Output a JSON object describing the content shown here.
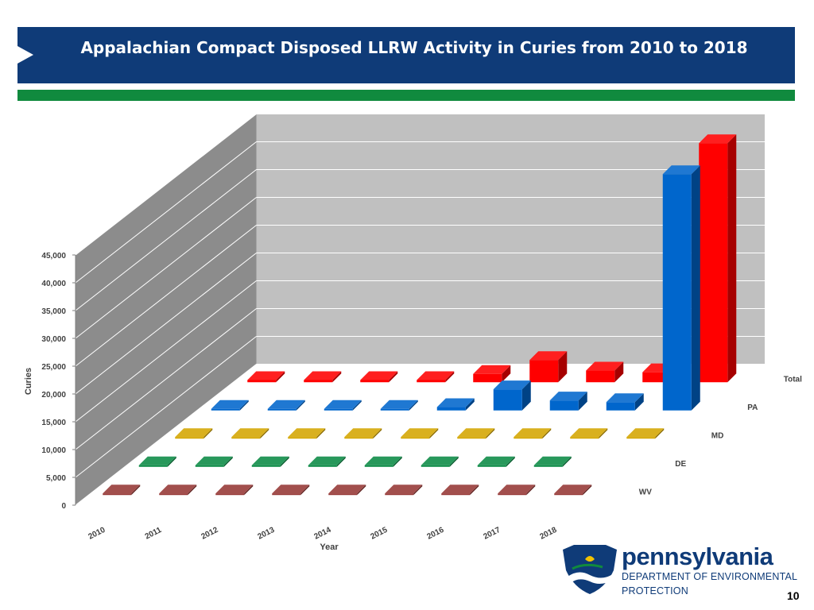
{
  "slide": {
    "title": "Appalachian Compact Disposed LLRW Activity in Curies from 2010 to 2018",
    "page_number": "10",
    "logo": {
      "name": "pennsylvania",
      "department": "DEPARTMENT OF ENVIRONMENTAL",
      "department2": "PROTECTION"
    }
  },
  "colors": {
    "title_bar": "#0f3b78",
    "accent_rule": "#108a3e",
    "Total": "#ff0000",
    "PA": "#0066cc",
    "MD": "#d4a500",
    "DE": "#0b8a45",
    "WV": "#953735"
  },
  "chart_data": {
    "type": "bar",
    "subtype": "3d-column",
    "title": "",
    "xlabel": "Year",
    "ylabel": "Curies",
    "categories": [
      "2010",
      "2011",
      "2012",
      "2013",
      "2014",
      "2015",
      "2016",
      "2017",
      "2018"
    ],
    "ylim": [
      0,
      45000
    ],
    "yticks": [
      0,
      5000,
      10000,
      15000,
      20000,
      25000,
      30000,
      35000,
      40000,
      45000
    ],
    "ytick_labels": [
      "0",
      "5,000",
      "10,000",
      "15,000",
      "20,000",
      "25,000",
      "30,000",
      "35,000",
      "40,000",
      "45,000"
    ],
    "series": [
      {
        "name": "WV",
        "values": [
          0,
          0,
          0,
          0,
          0,
          0,
          0,
          0,
          0
        ]
      },
      {
        "name": "DE",
        "values": [
          0,
          0,
          0,
          0,
          0,
          0,
          0,
          0,
          null
        ]
      },
      {
        "name": "MD",
        "values": [
          0,
          0,
          0,
          0,
          50,
          0,
          0,
          0,
          0
        ]
      },
      {
        "name": "PA",
        "values": [
          0,
          0,
          0,
          0,
          600,
          3800,
          1800,
          1500,
          42500
        ]
      },
      {
        "name": "Total",
        "values": [
          400,
          400,
          400,
          400,
          1500,
          4000,
          2100,
          1800,
          43000
        ]
      }
    ]
  }
}
